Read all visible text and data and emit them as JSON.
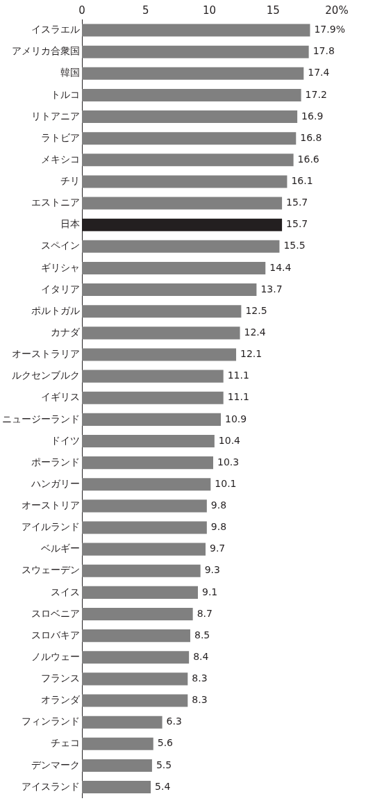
{
  "chart_data": {
    "type": "bar",
    "orientation": "horizontal",
    "categories": [
      "イスラエル",
      "アメリカ合衆国",
      "韓国",
      "トルコ",
      "リトアニア",
      "ラトビア",
      "メキシコ",
      "チリ",
      "エストニア",
      "日本",
      "スペイン",
      "ギリシャ",
      "イタリア",
      "ポルトガル",
      "カナダ",
      "オーストラリア",
      "ルクセンブルク",
      "イギリス",
      "ニュージーランド",
      "ドイツ",
      "ポーランド",
      "ハンガリー",
      "オーストリア",
      "アイルランド",
      "ベルギー",
      "スウェーデン",
      "スイス",
      "スロベニア",
      "スロバキア",
      "ノルウェー",
      "フランス",
      "オランダ",
      "フィンランド",
      "チェコ",
      "デンマーク",
      "アイスランド"
    ],
    "values": [
      17.9,
      17.8,
      17.4,
      17.2,
      16.9,
      16.8,
      16.6,
      16.1,
      15.7,
      15.7,
      15.5,
      14.4,
      13.7,
      12.5,
      12.4,
      12.1,
      11.1,
      11.1,
      10.9,
      10.4,
      10.3,
      10.1,
      9.8,
      9.8,
      9.7,
      9.3,
      9.1,
      8.7,
      8.5,
      8.4,
      8.3,
      8.3,
      6.3,
      5.6,
      5.5,
      5.4
    ],
    "value_labels": [
      "17.9%",
      "17.8",
      "17.4",
      "17.2",
      "16.9",
      "16.8",
      "16.6",
      "16.1",
      "15.7",
      "15.7",
      "15.5",
      "14.4",
      "13.7",
      "12.5",
      "12.4",
      "12.1",
      "11.1",
      "11.1",
      "10.9",
      "10.4",
      "10.3",
      "10.1",
      "9.8",
      "9.8",
      "9.7",
      "9.3",
      "9.1",
      "8.7",
      "8.5",
      "8.4",
      "8.3",
      "8.3",
      "6.3",
      "5.6",
      "5.5",
      "5.4"
    ],
    "colors": [
      "#808080",
      "#808080",
      "#808080",
      "#808080",
      "#808080",
      "#808080",
      "#808080",
      "#808080",
      "#808080",
      "#231f20",
      "#808080",
      "#808080",
      "#808080",
      "#808080",
      "#808080",
      "#808080",
      "#808080",
      "#808080",
      "#808080",
      "#808080",
      "#808080",
      "#808080",
      "#808080",
      "#808080",
      "#808080",
      "#808080",
      "#808080",
      "#808080",
      "#808080",
      "#808080",
      "#808080",
      "#808080",
      "#808080",
      "#808080",
      "#808080",
      "#808080"
    ],
    "xlim": [
      0,
      20
    ],
    "xticks": [
      0,
      5,
      10,
      15,
      {
        "value": 20,
        "label": "20%"
      }
    ],
    "grid": false,
    "legend": false
  }
}
